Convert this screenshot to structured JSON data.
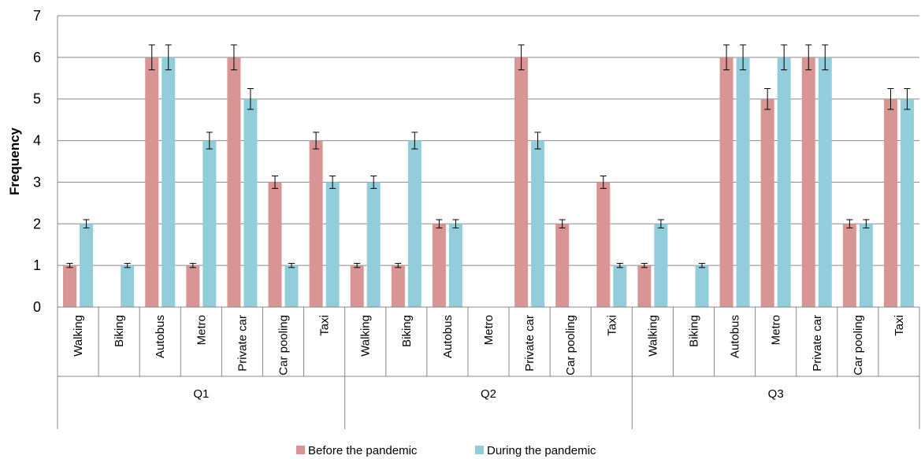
{
  "chart_data": {
    "type": "bar",
    "title": "",
    "xlabel": "",
    "ylabel": "Frequency",
    "ylim": [
      0,
      7
    ],
    "yticks": [
      0,
      1,
      2,
      3,
      4,
      5,
      6,
      7
    ],
    "grid": true,
    "legend_position": "bottom",
    "error_bars": true,
    "groups": [
      {
        "label": "Q1",
        "categories": [
          "Walking",
          "Biking",
          "Autobus",
          "Metro",
          "Private car",
          "Car pooling",
          "Taxi"
        ],
        "before": [
          1,
          0,
          6,
          1,
          6,
          3,
          4
        ],
        "during": [
          2,
          1,
          6,
          4,
          5,
          1,
          3
        ]
      },
      {
        "label": "Q2",
        "categories": [
          "Walking",
          "Biking",
          "Autobus",
          "Metro",
          "Private car",
          "Car pooling",
          "Taxi"
        ],
        "before": [
          1,
          1,
          2,
          0,
          6,
          2,
          3
        ],
        "during": [
          3,
          4,
          2,
          0,
          4,
          0,
          1
        ]
      },
      {
        "label": "Q3",
        "categories": [
          "Walking",
          "Biking",
          "Autobus",
          "Metro",
          "Private car",
          "Car pooling",
          "Taxi"
        ],
        "before": [
          1,
          0,
          6,
          5,
          6,
          2,
          5
        ],
        "during": [
          2,
          1,
          6,
          6,
          6,
          2,
          5
        ]
      }
    ],
    "series": [
      {
        "name": "Before the pandemic",
        "color": "#d99594"
      },
      {
        "name": "During the pandemic",
        "color": "#92cddc"
      }
    ]
  }
}
